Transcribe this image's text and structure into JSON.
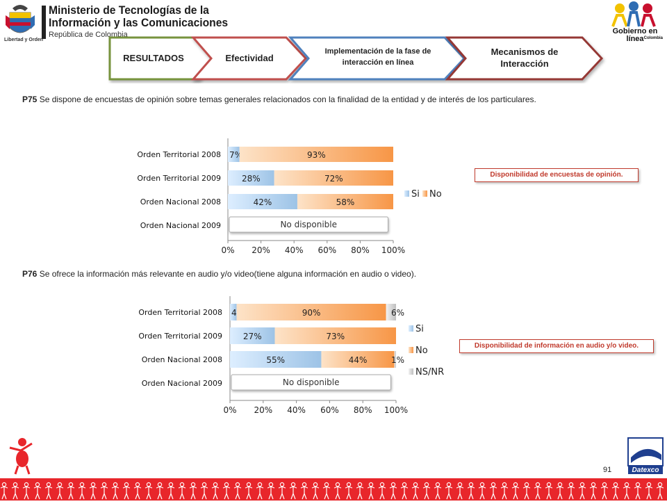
{
  "header": {
    "ministry_line1": "Ministerio de Tecnologías de la",
    "ministry_line2": "Información y las Comunicaciones",
    "ministry_line3": "República de Colombia",
    "crest_caption": "Libertad y Orden",
    "gel_line1": "Gobierno en línea",
    "gel_line2": "Colombia"
  },
  "tabs": [
    {
      "label": "RESULTADOS",
      "border": "#77933c"
    },
    {
      "label": "Efectividad",
      "border": "#c0504d"
    },
    {
      "label": "Implementación de la fase de interacción en línea",
      "border": "#4f81bd"
    },
    {
      "label": "Mecanismos de Interacción",
      "border": "#953735"
    }
  ],
  "questions": [
    {
      "code": "P75",
      "text": "Se dispone de encuestas de opinión sobre temas generales relacionados con la finalidad de la entidad y de interés de los particulares."
    },
    {
      "code": "P76",
      "text": "Se ofrece la información más relevante en audio y/o video(tiene alguna información en audio o video)."
    }
  ],
  "notes": [
    "Disponibilidad de encuestas de opinión.",
    "Disponibilidad de información en audio y/o video."
  ],
  "page_number": "91",
  "footer_logo": "Datexco",
  "colors": {
    "si": "#9dc3e6",
    "no": "#f79646",
    "nsnr": "#bfbfbf",
    "red": "#e8262b"
  },
  "chart_data": [
    {
      "type": "bar",
      "orientation": "horizontal",
      "stacked": true,
      "categories": [
        "Orden Territorial 2008",
        "Orden Territorial 2009",
        "Orden Nacional 2008",
        "Orden Nacional 2009"
      ],
      "series": [
        {
          "name": "Si",
          "values": [
            7,
            28,
            42,
            null
          ],
          "labels": [
            "7%",
            "28%",
            "42%",
            ""
          ]
        },
        {
          "name": "No",
          "values": [
            93,
            72,
            58,
            null
          ],
          "labels": [
            "93%",
            "72%",
            "58%",
            ""
          ]
        }
      ],
      "xlim": [
        0,
        100
      ],
      "xticks": [
        "0%",
        "20%",
        "40%",
        "60%",
        "80%",
        "100%"
      ],
      "unavailable_label": "No disponible",
      "unavailable_category": "Orden Nacional 2009",
      "legend": "right"
    },
    {
      "type": "bar",
      "orientation": "horizontal",
      "stacked": true,
      "categories": [
        "Orden Territorial 2008",
        "Orden Territorial 2009",
        "Orden Nacional 2008",
        "Orden Nacional 2009"
      ],
      "series": [
        {
          "name": "Si",
          "values": [
            4,
            27,
            55,
            null
          ],
          "labels": [
            "4%",
            "27%",
            "55%",
            ""
          ]
        },
        {
          "name": "No",
          "values": [
            90,
            73,
            44,
            null
          ],
          "labels": [
            "90%",
            "73%",
            "44%",
            ""
          ]
        },
        {
          "name": "NS/NR",
          "values": [
            6,
            0,
            1,
            null
          ],
          "labels": [
            "6%",
            "",
            "1%",
            ""
          ]
        }
      ],
      "xlim": [
        0,
        100
      ],
      "xticks": [
        "0%",
        "20%",
        "40%",
        "60%",
        "80%",
        "100%"
      ],
      "unavailable_label": "No disponible",
      "unavailable_category": "Orden Nacional 2009",
      "legend": "right"
    }
  ]
}
